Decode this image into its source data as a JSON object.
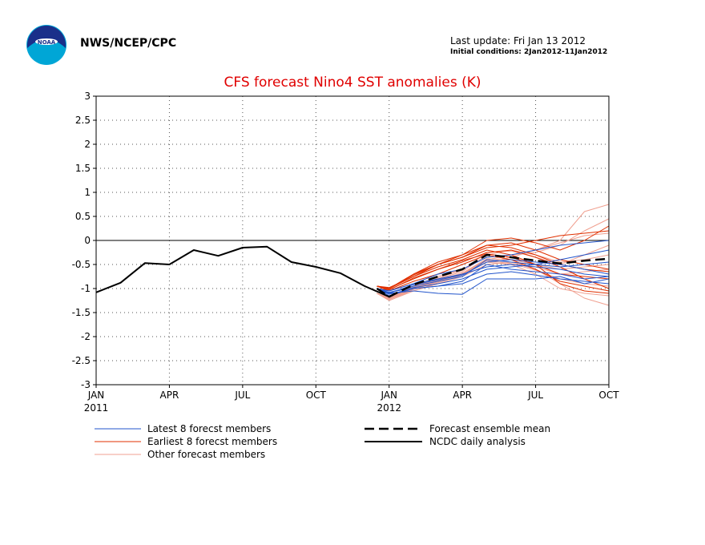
{
  "header": {
    "org": "NWS/NCEP/CPC",
    "last_update": "Last update: Fri Jan 13 2012",
    "initial_conditions": "Initial conditions: 2Jan2012-11Jan2012",
    "logo_text": "NOAA"
  },
  "colors": {
    "title": "#e00000",
    "latest": "#2255cc",
    "earliest": "#e03000",
    "other": "#f0a090",
    "mean": "#000000",
    "analysis": "#000000"
  },
  "chart_data": {
    "type": "line",
    "title": "CFS forecast Nino4 SST anomalies (K)",
    "xlabel": "",
    "ylabel": "",
    "ylim": [
      -3,
      3
    ],
    "yticks": [
      "3",
      "2.5",
      "2",
      "1.5",
      "1",
      "0.5",
      "0",
      "-0.5",
      "-1",
      "-1.5",
      "-2",
      "-2.5",
      "-3"
    ],
    "x_tick_labels": [
      "JAN",
      "APR",
      "JUL",
      "OCT",
      "JAN",
      "APR",
      "JUL",
      "OCT"
    ],
    "x_year_labels": [
      {
        "label": "2011",
        "month": 0
      },
      {
        "label": "2012",
        "month": 12
      }
    ],
    "grid": true,
    "legend": [
      {
        "label": "Latest 8 forecst members",
        "key": "latest"
      },
      {
        "label": "Earliest 8 forecst members",
        "key": "earliest"
      },
      {
        "label": "Other forecast members",
        "key": "other"
      },
      {
        "label": "Forecast ensemble mean",
        "key": "mean"
      },
      {
        "label": "NCDC daily analysis",
        "key": "analysis"
      }
    ],
    "analysis": {
      "name": "NCDC daily analysis",
      "x": [
        0,
        1,
        2,
        3,
        4,
        5,
        6,
        7,
        8,
        9,
        10,
        11,
        12
      ],
      "values": [
        -1.08,
        -0.88,
        -0.47,
        -0.5,
        -0.2,
        -0.32,
        -0.15,
        -0.13,
        -0.45,
        -0.55,
        -0.68,
        -0.95,
        -1.17
      ]
    },
    "ensemble_mean": {
      "name": "Forecast ensemble mean",
      "x": [
        11.5,
        12,
        13,
        14,
        15,
        16,
        17,
        18,
        19,
        20,
        21
      ],
      "values": [
        -1.0,
        -1.17,
        -0.92,
        -0.75,
        -0.6,
        -0.3,
        -0.35,
        -0.42,
        -0.48,
        -0.42,
        -0.38
      ]
    },
    "latest_members": [
      [
        -1.0,
        -1.05,
        -0.9,
        -0.8,
        -0.7,
        -0.55,
        -0.5,
        -0.55,
        -0.6,
        -0.7,
        -0.75
      ],
      [
        -1.0,
        -1.1,
        -1.05,
        -1.1,
        -1.12,
        -0.8,
        -0.8,
        -0.8,
        -0.75,
        -0.9,
        -0.8
      ],
      [
        -1.0,
        -1.08,
        -0.95,
        -0.85,
        -0.75,
        -0.4,
        -0.45,
        -0.5,
        -0.55,
        -0.5,
        -0.45
      ],
      [
        -1.0,
        -1.12,
        -1.0,
        -0.95,
        -0.85,
        -0.5,
        -0.6,
        -0.65,
        -0.7,
        -0.8,
        -0.75
      ],
      [
        -1.0,
        -1.05,
        -0.9,
        -0.7,
        -0.6,
        -0.35,
        -0.3,
        -0.2,
        -0.1,
        -0.05,
        0.0
      ],
      [
        -1.0,
        -1.1,
        -0.92,
        -0.82,
        -0.72,
        -0.45,
        -0.4,
        -0.45,
        -0.5,
        -0.6,
        -0.7
      ],
      [
        -1.0,
        -1.08,
        -0.98,
        -0.9,
        -0.8,
        -0.6,
        -0.55,
        -0.5,
        -0.4,
        -0.3,
        -0.2
      ],
      [
        -1.0,
        -1.15,
        -1.0,
        -0.95,
        -0.9,
        -0.7,
        -0.65,
        -0.72,
        -0.8,
        -0.85,
        -0.9
      ]
    ],
    "earliest_members": [
      [
        -0.95,
        -1.0,
        -0.7,
        -0.5,
        -0.35,
        -0.1,
        -0.05,
        -0.2,
        -0.4,
        -0.5,
        -0.6
      ],
      [
        -0.95,
        -0.98,
        -0.75,
        -0.55,
        -0.4,
        -0.2,
        -0.3,
        -0.5,
        -0.9,
        -1.05,
        -1.1
      ],
      [
        -0.95,
        -1.02,
        -0.8,
        -0.6,
        -0.45,
        -0.25,
        -0.2,
        -0.35,
        -0.55,
        -0.8,
        -1.0
      ],
      [
        -0.95,
        -1.0,
        -0.7,
        -0.45,
        -0.3,
        0.0,
        0.05,
        -0.05,
        -0.2,
        0.0,
        0.3
      ],
      [
        -0.95,
        -1.05,
        -0.85,
        -0.7,
        -0.5,
        -0.3,
        -0.4,
        -0.6,
        -0.85,
        -0.95,
        -1.05
      ],
      [
        -0.95,
        -1.0,
        -0.75,
        -0.5,
        -0.35,
        -0.15,
        -0.1,
        0.0,
        0.1,
        0.15,
        0.2
      ],
      [
        -0.95,
        -1.03,
        -0.78,
        -0.6,
        -0.42,
        -0.28,
        -0.35,
        -0.5,
        -0.7,
        -0.75,
        -0.8
      ],
      [
        -0.95,
        -1.0,
        -0.72,
        -0.5,
        -0.3,
        -0.1,
        -0.15,
        -0.3,
        -0.5,
        -0.6,
        -0.65
      ]
    ],
    "other_members": [
      [
        -1.1,
        -1.2,
        -1.0,
        -0.85,
        -0.7,
        -0.4,
        -0.3,
        -0.2,
        0.0,
        0.6,
        0.75
      ],
      [
        -1.1,
        -1.22,
        -1.05,
        -0.9,
        -0.75,
        -0.5,
        -0.45,
        -0.6,
        -0.9,
        -1.2,
        -1.35
      ],
      [
        -1.1,
        -1.18,
        -0.95,
        -0.75,
        -0.6,
        -0.35,
        -0.3,
        -0.25,
        -0.1,
        0.2,
        0.45
      ],
      [
        -1.1,
        -1.25,
        -1.05,
        -0.88,
        -0.72,
        -0.45,
        -0.5,
        -0.7,
        -1.0,
        -1.1,
        -1.15
      ],
      [
        -1.1,
        -1.2,
        -0.98,
        -0.8,
        -0.65,
        -0.3,
        -0.2,
        -0.3,
        -0.45,
        -0.4,
        -0.3
      ],
      [
        -1.1,
        -1.21,
        -1.0,
        -0.82,
        -0.68,
        -0.38,
        -0.4,
        -0.5,
        -0.6,
        -0.55,
        -0.5
      ],
      [
        -1.1,
        -1.19,
        -0.97,
        -0.78,
        -0.62,
        -0.25,
        -0.22,
        -0.35,
        -0.5,
        -0.3,
        -0.1
      ],
      [
        -1.1,
        -1.23,
        -1.02,
        -0.86,
        -0.7,
        -0.42,
        -0.48,
        -0.62,
        -0.8,
        -0.9,
        -0.95
      ],
      [
        -1.1,
        -1.2,
        -1.0,
        -0.85,
        -0.7,
        -0.45,
        -0.35,
        -0.2,
        -0.05,
        0.1,
        0.15
      ],
      [
        -1.1,
        -1.22,
        -1.01,
        -0.84,
        -0.69,
        -0.4,
        -0.45,
        -0.55,
        -0.7,
        -0.65,
        -0.6
      ]
    ]
  }
}
